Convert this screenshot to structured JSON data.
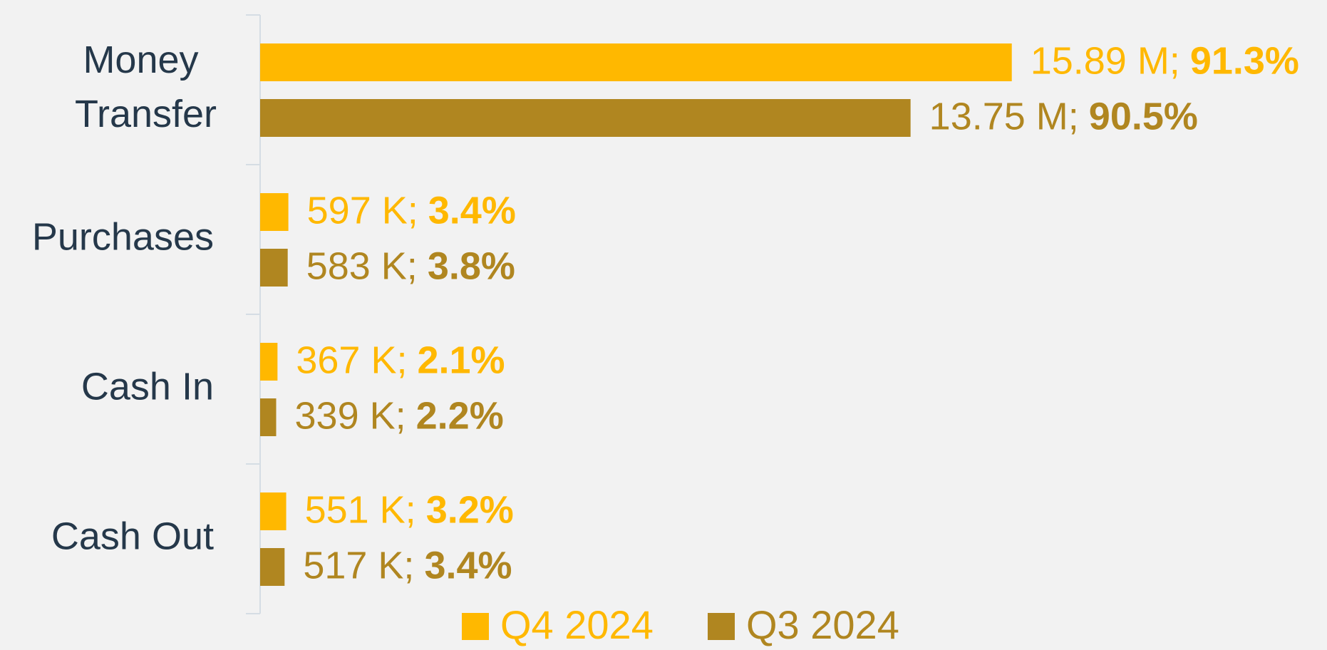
{
  "chart_data": {
    "type": "bar",
    "orientation": "horizontal",
    "categories": [
      "Money Transfer",
      "Purchases",
      "Cash In",
      "Cash Out"
    ],
    "series": [
      {
        "name": "Q4 2024",
        "color": "#ffb800",
        "values": [
          15890000,
          597000,
          367000,
          551000
        ],
        "value_labels": [
          "15.89 M;",
          "597 K;",
          "367 K;",
          "551 K;"
        ],
        "shares": [
          91.3,
          3.4,
          2.1,
          3.2
        ],
        "share_labels": [
          "91.3%",
          "3.4%",
          "2.1%",
          "3.2%"
        ]
      },
      {
        "name": "Q3 2024",
        "color": "#b08620",
        "values": [
          13750000,
          583000,
          339000,
          517000
        ],
        "value_labels": [
          "13.75 M;",
          "583 K;",
          "339 K;",
          "517 K;"
        ],
        "shares": [
          90.5,
          3.8,
          2.2,
          3.4
        ],
        "share_labels": [
          "90.5%",
          "3.8%",
          "2.2%",
          "3.4%"
        ]
      }
    ],
    "xlim": [
      0,
      16000000
    ],
    "legend": "bottom"
  }
}
